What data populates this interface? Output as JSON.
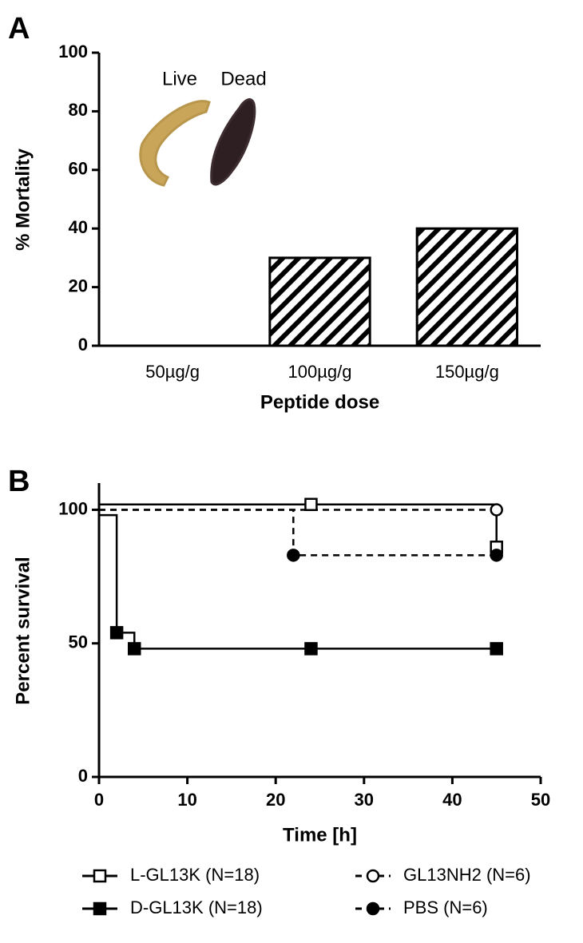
{
  "chart_data": [
    {
      "type": "bar",
      "panel": "A",
      "categories": [
        "50µg/g",
        "100µg/g",
        "150µg/g"
      ],
      "values": [
        0,
        30,
        40
      ],
      "color": "#000000",
      "fill": "hatch",
      "ylim": [
        0,
        100
      ],
      "yticks": [
        0,
        20,
        40,
        60,
        80,
        100
      ],
      "ylabel": "% Mortality",
      "xlabel": "Peptide dose",
      "annotations": [
        "Live",
        "Dead"
      ]
    },
    {
      "type": "step",
      "panel": "B",
      "xlim": [
        0,
        50
      ],
      "xticks": [
        0,
        10,
        20,
        30,
        40,
        50
      ],
      "ylim": [
        0,
        110
      ],
      "yticks": [
        0,
        50,
        100
      ],
      "xlabel": "Time [h]",
      "ylabel": "Percent survival",
      "series": [
        {
          "name": "L-GL13K (N=18)",
          "color": "#000000",
          "style": "solid",
          "marker": "square-open",
          "x": [
            0,
            24,
            45
          ],
          "values": [
            102,
            102,
            86
          ]
        },
        {
          "name": "D-GL13K (N=18)",
          "color": "#000000",
          "style": "solid",
          "marker": "square-filled",
          "x": [
            0,
            2,
            4,
            24,
            45
          ],
          "values": [
            98,
            54,
            48,
            48,
            48
          ]
        },
        {
          "name": "GL13NH2 (N=6)",
          "color": "#000000",
          "style": "dashed",
          "marker": "circle-open",
          "x": [
            0,
            45
          ],
          "values": [
            100,
            100
          ]
        },
        {
          "name": "PBS (N=6)",
          "color": "#000000",
          "style": "dashed",
          "marker": "circle-filled",
          "x": [
            0,
            22,
            45
          ],
          "values": [
            100,
            83,
            83
          ]
        }
      ]
    }
  ]
}
